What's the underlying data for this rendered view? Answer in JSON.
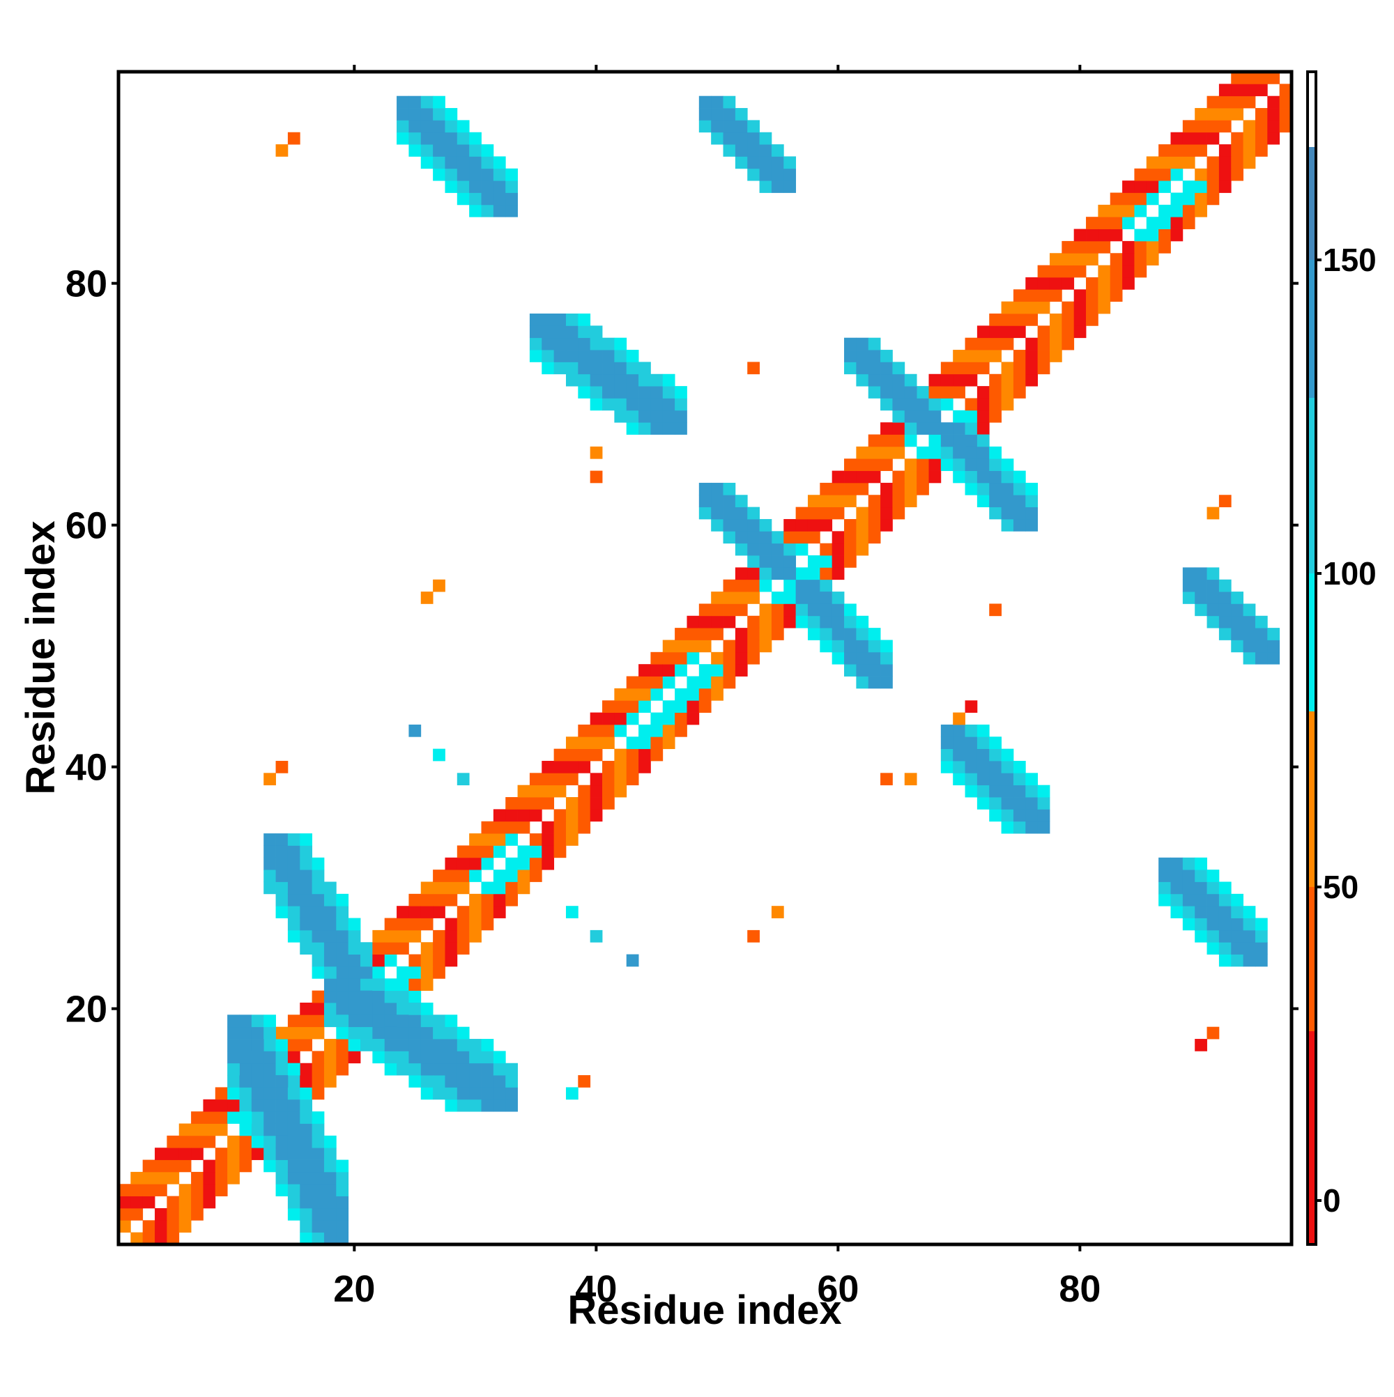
{
  "chart_data": {
    "type": "heatmap",
    "title": "",
    "xlabel": "Residue index",
    "ylabel": "Residue index",
    "xlim": [
      0.5,
      97.5
    ],
    "ylim": [
      0.5,
      97.5
    ],
    "x_ticks": [
      20,
      40,
      60,
      80
    ],
    "y_ticks": [
      20,
      40,
      60,
      80
    ],
    "x_tick_labels": [
      "20",
      "40",
      "60",
      "80"
    ],
    "y_tick_labels": [
      "20",
      "40",
      "60",
      "80"
    ],
    "grid": false,
    "legend": "right",
    "colorbar": {
      "range": [
        -7,
        180
      ],
      "ticks": [
        0,
        50,
        100,
        150
      ],
      "tick_labels": [
        "0",
        "50",
        "100",
        "150"
      ],
      "bands": [
        {
          "from": -7,
          "to": 27,
          "color": "#ee1111"
        },
        {
          "from": 27,
          "to": 50,
          "color": "#fe5a00"
        },
        {
          "from": 50,
          "to": 78,
          "color": "#ff8800"
        },
        {
          "from": 78,
          "to": 100,
          "color": "#00eeee"
        },
        {
          "from": 100,
          "to": 128,
          "color": "#22ccdd"
        },
        {
          "from": 128,
          "to": 150,
          "color": "#3399cc"
        },
        {
          "from": 150,
          "to": 168,
          "color": "#4488bb"
        },
        {
          "from": 168,
          "to": 180,
          "color": "#ffffff"
        }
      ]
    },
    "value_scale": {
      "red": 10,
      "orange_red": 40,
      "orange": 65,
      "cyan": 92,
      "light_blue": 115,
      "blue": 142
    },
    "cells": {
      "diagonal_beta": "residue pairs along |i-j| = 1..4, alternating red / orange-red / orange with gaps on the exact diagonal",
      "regions": [
        {
          "name": "hairpin 1-19",
          "x": [
            10,
            19
          ],
          "y": [
            1,
            19
          ],
          "value": 140
        },
        {
          "name": "sheet 14-30",
          "x": [
            13,
            21
          ],
          "y": [
            21,
            34
          ],
          "value": 140
        },
        {
          "name": "sheet 17-31",
          "x": [
            18,
            33
          ],
          "y": [
            12,
            22
          ],
          "value": 140
        },
        {
          "name": "sheet 24-31 / 87-95",
          "x": [
            24,
            33
          ],
          "y": [
            86,
            95
          ],
          "value": 140
        },
        {
          "name": "sheet 35-47 / 68-77",
          "x": [
            35,
            47
          ],
          "y": [
            68,
            77
          ],
          "value": 140
        },
        {
          "name": "sheet 49-56 / 88-95",
          "x": [
            49,
            56
          ],
          "y": [
            88,
            95
          ],
          "value": 140
        },
        {
          "name": "sheet 49-56 / 56-63",
          "x": [
            49,
            56
          ],
          "y": [
            56,
            63
          ],
          "value": 140
        },
        {
          "name": "sheet 57-64 / 47-55",
          "x": [
            57,
            64
          ],
          "y": [
            47,
            55
          ],
          "value": 140
        },
        {
          "name": "sheet 61-68 / 68-75",
          "x": [
            61,
            68
          ],
          "y": [
            68,
            75
          ],
          "value": 140
        },
        {
          "name": "sheet 69-76 / 60-68",
          "x": [
            69,
            76
          ],
          "y": [
            60,
            68
          ],
          "value": 140
        },
        {
          "name": "sheet 69-77 / 35-43",
          "x": [
            69,
            77
          ],
          "y": [
            35,
            43
          ],
          "value": 140
        },
        {
          "name": "sheet 87-95 / 24-32",
          "x": [
            87,
            95
          ],
          "y": [
            24,
            32
          ],
          "value": 140
        },
        {
          "name": "sheet 89-96 / 49-56",
          "x": [
            89,
            96
          ],
          "y": [
            49,
            56
          ],
          "value": 140
        }
      ]
    }
  }
}
